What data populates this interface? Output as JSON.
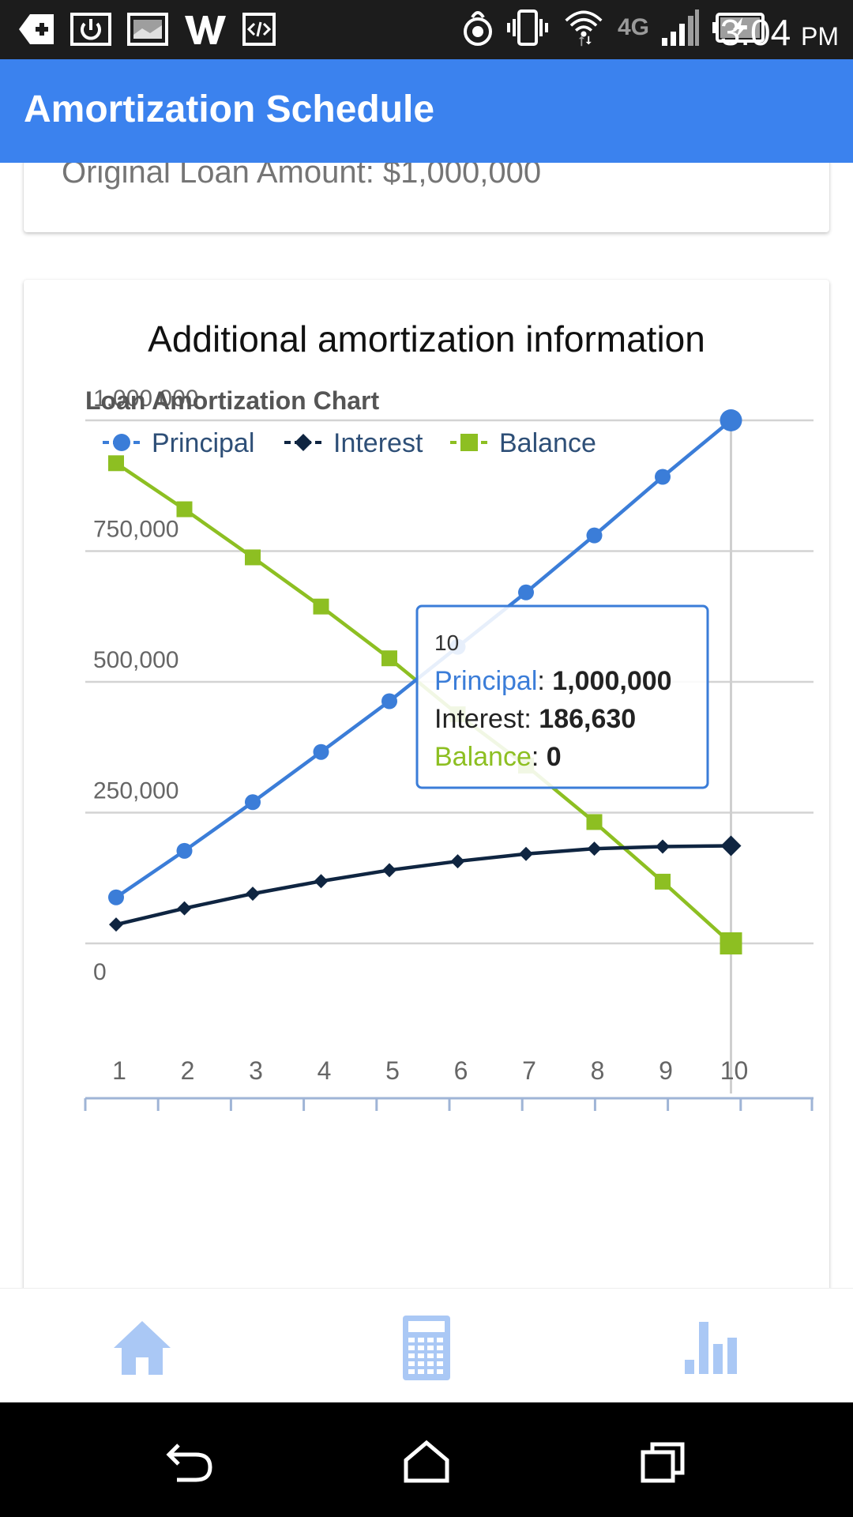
{
  "status_bar": {
    "time": "3:04",
    "ampm": "PM",
    "network": "4G",
    "icons_left": [
      "add-box-icon",
      "power-icon",
      "image-icon",
      "w-icon",
      "code-icon"
    ],
    "icons_right": [
      "fire-icon",
      "vibrate-icon",
      "wifi-icon",
      "4g-lte-icon",
      "signal-icon",
      "battery-charging-icon"
    ]
  },
  "app_bar": {
    "title": "Amortization Schedule"
  },
  "summary_card": {
    "text": "Original Loan Amount: $1,000,000"
  },
  "info_card": {
    "title": "Additional amortization information"
  },
  "chart_data": {
    "type": "line",
    "title": "Loan Amortization Chart",
    "x": [
      1,
      2,
      3,
      4,
      5,
      6,
      7,
      8,
      9,
      10
    ],
    "ylim": [
      0,
      1000000
    ],
    "ytick_labels": [
      "0",
      "250,000",
      "500,000",
      "750,000",
      "1,000,000"
    ],
    "yticks": [
      0,
      250000,
      500000,
      750000,
      1000000
    ],
    "grid": true,
    "legend": "top-left",
    "series": [
      {
        "name": "Principal",
        "color": "#3b7dd8",
        "marker": "circle",
        "values": [
          88000,
          177000,
          270000,
          366000,
          463000,
          567000,
          671000,
          780000,
          892000,
          1000000
        ]
      },
      {
        "name": "Interest",
        "color": "#0f2541",
        "marker": "diamond",
        "values": [
          36000,
          67000,
          95000,
          119000,
          140000,
          157000,
          171000,
          181000,
          185000,
          186630
        ]
      },
      {
        "name": "Balance",
        "color": "#8dbf22",
        "marker": "square",
        "values": [
          918000,
          830000,
          738000,
          644000,
          545000,
          438000,
          340000,
          232000,
          118000,
          0
        ]
      }
    ],
    "tooltip": {
      "x_label": "10",
      "rows": [
        {
          "name": "Principal",
          "value": "1,000,000",
          "color": "#3b7dd8"
        },
        {
          "name": "Interest",
          "value": "186,630",
          "color": "#222222"
        },
        {
          "name": "Balance",
          "value": "0",
          "color": "#8dbf22"
        }
      ]
    }
  },
  "bottom_nav": {
    "items": [
      {
        "icon": "home-icon"
      },
      {
        "icon": "calculator-icon"
      },
      {
        "icon": "bar-chart-icon"
      }
    ],
    "icon_color": "#aac8f5"
  },
  "system_nav": {
    "items": [
      "back-icon",
      "home-outline-icon",
      "recents-icon"
    ]
  }
}
